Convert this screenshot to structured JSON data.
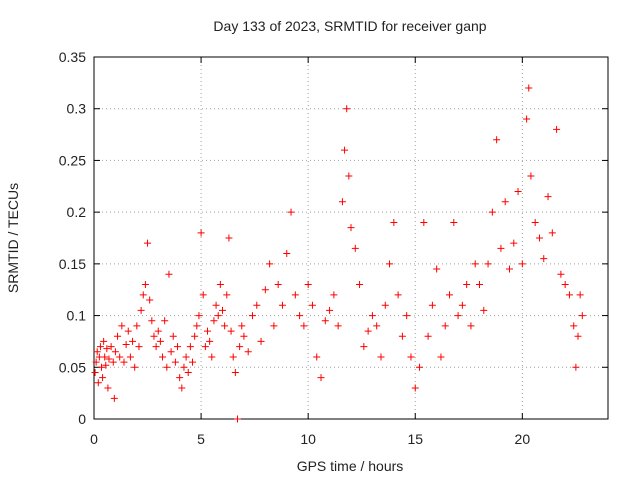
{
  "chart_data": {
    "type": "scatter",
    "title": "Day 133 of 2023, SRMTID for receiver ganp",
    "xlabel": "GPS time / hours",
    "ylabel": "SRMTID / TECUs",
    "xlim": [
      0,
      24
    ],
    "ylim": [
      0,
      0.35
    ],
    "xticks": [
      0,
      5,
      10,
      15,
      20
    ],
    "xtick_labels": [
      "0",
      "5",
      "10",
      "15",
      "20"
    ],
    "yticks": [
      0,
      0.05,
      0.1,
      0.15,
      0.2,
      0.25,
      0.3,
      0.35
    ],
    "ytick_labels": [
      "0",
      "0.05",
      "0.1",
      "0.15",
      "0.2",
      "0.25",
      "0.3",
      "0.35"
    ],
    "grid": true,
    "marker": "+",
    "color": "#ff0000",
    "series": [
      {
        "name": "SRMTID",
        "points": [
          [
            0.05,
            0.045
          ],
          [
            0.1,
            0.055
          ],
          [
            0.15,
            0.065
          ],
          [
            0.2,
            0.035
          ],
          [
            0.25,
            0.06
          ],
          [
            0.3,
            0.07
          ],
          [
            0.35,
            0.05
          ],
          [
            0.4,
            0.04
          ],
          [
            0.45,
            0.075
          ],
          [
            0.5,
            0.06
          ],
          [
            0.55,
            0.052
          ],
          [
            0.6,
            0.068
          ],
          [
            0.65,
            0.03
          ],
          [
            0.7,
            0.058
          ],
          [
            0.8,
            0.07
          ],
          [
            0.9,
            0.055
          ],
          [
            0.95,
            0.02
          ],
          [
            1.0,
            0.065
          ],
          [
            1.1,
            0.08
          ],
          [
            1.2,
            0.06
          ],
          [
            1.3,
            0.09
          ],
          [
            1.4,
            0.055
          ],
          [
            1.5,
            0.072
          ],
          [
            1.6,
            0.085
          ],
          [
            1.7,
            0.06
          ],
          [
            1.8,
            0.075
          ],
          [
            1.9,
            0.05
          ],
          [
            2.0,
            0.09
          ],
          [
            2.1,
            0.07
          ],
          [
            2.2,
            0.105
          ],
          [
            2.3,
            0.12
          ],
          [
            2.4,
            0.13
          ],
          [
            2.5,
            0.17
          ],
          [
            2.6,
            0.115
          ],
          [
            2.7,
            0.095
          ],
          [
            2.8,
            0.08
          ],
          [
            2.9,
            0.07
          ],
          [
            3.0,
            0.085
          ],
          [
            3.1,
            0.075
          ],
          [
            3.2,
            0.06
          ],
          [
            3.3,
            0.095
          ],
          [
            3.4,
            0.05
          ],
          [
            3.5,
            0.14
          ],
          [
            3.6,
            0.065
          ],
          [
            3.7,
            0.08
          ],
          [
            3.8,
            0.055
          ],
          [
            3.9,
            0.07
          ],
          [
            4.0,
            0.04
          ],
          [
            4.1,
            0.03
          ],
          [
            4.2,
            0.05
          ],
          [
            4.3,
            0.06
          ],
          [
            4.4,
            0.045
          ],
          [
            4.5,
            0.07
          ],
          [
            4.6,
            0.055
          ],
          [
            4.7,
            0.08
          ],
          [
            4.8,
            0.09
          ],
          [
            4.9,
            0.1
          ],
          [
            5.0,
            0.18
          ],
          [
            5.1,
            0.12
          ],
          [
            5.2,
            0.07
          ],
          [
            5.3,
            0.085
          ],
          [
            5.4,
            0.075
          ],
          [
            5.5,
            0.06
          ],
          [
            5.6,
            0.095
          ],
          [
            5.7,
            0.11
          ],
          [
            5.8,
            0.1
          ],
          [
            5.9,
            0.13
          ],
          [
            6.0,
            0.105
          ],
          [
            6.1,
            0.09
          ],
          [
            6.2,
            0.12
          ],
          [
            6.3,
            0.175
          ],
          [
            6.4,
            0.085
          ],
          [
            6.5,
            0.06
          ],
          [
            6.6,
            0.045
          ],
          [
            6.7,
            0.0
          ],
          [
            6.8,
            0.07
          ],
          [
            6.9,
            0.09
          ],
          [
            7.0,
            0.08
          ],
          [
            7.2,
            0.065
          ],
          [
            7.4,
            0.1
          ],
          [
            7.6,
            0.11
          ],
          [
            7.8,
            0.075
          ],
          [
            8.0,
            0.125
          ],
          [
            8.2,
            0.15
          ],
          [
            8.4,
            0.09
          ],
          [
            8.6,
            0.13
          ],
          [
            8.8,
            0.11
          ],
          [
            9.0,
            0.16
          ],
          [
            9.2,
            0.2
          ],
          [
            9.4,
            0.12
          ],
          [
            9.6,
            0.1
          ],
          [
            9.8,
            0.09
          ],
          [
            10.0,
            0.13
          ],
          [
            10.2,
            0.11
          ],
          [
            10.4,
            0.06
          ],
          [
            10.6,
            0.04
          ],
          [
            10.8,
            0.095
          ],
          [
            11.0,
            0.105
          ],
          [
            11.2,
            0.12
          ],
          [
            11.4,
            0.09
          ],
          [
            11.6,
            0.21
          ],
          [
            11.7,
            0.26
          ],
          [
            11.8,
            0.3
          ],
          [
            11.9,
            0.235
          ],
          [
            12.0,
            0.185
          ],
          [
            12.2,
            0.165
          ],
          [
            12.4,
            0.13
          ],
          [
            12.6,
            0.07
          ],
          [
            12.8,
            0.085
          ],
          [
            13.0,
            0.1
          ],
          [
            13.2,
            0.09
          ],
          [
            13.4,
            0.06
          ],
          [
            13.6,
            0.11
          ],
          [
            13.8,
            0.15
          ],
          [
            14.0,
            0.19
          ],
          [
            14.2,
            0.12
          ],
          [
            14.4,
            0.08
          ],
          [
            14.6,
            0.1
          ],
          [
            14.8,
            0.06
          ],
          [
            15.0,
            0.03
          ],
          [
            15.2,
            0.05
          ],
          [
            15.4,
            0.19
          ],
          [
            15.6,
            0.08
          ],
          [
            15.8,
            0.11
          ],
          [
            16.0,
            0.145
          ],
          [
            16.2,
            0.06
          ],
          [
            16.4,
            0.09
          ],
          [
            16.6,
            0.12
          ],
          [
            16.8,
            0.19
          ],
          [
            17.0,
            0.1
          ],
          [
            17.2,
            0.11
          ],
          [
            17.4,
            0.13
          ],
          [
            17.6,
            0.09
          ],
          [
            17.8,
            0.15
          ],
          [
            18.0,
            0.13
          ],
          [
            18.2,
            0.105
          ],
          [
            18.4,
            0.15
          ],
          [
            18.6,
            0.2
          ],
          [
            18.8,
            0.27
          ],
          [
            19.0,
            0.165
          ],
          [
            19.2,
            0.21
          ],
          [
            19.4,
            0.145
          ],
          [
            19.6,
            0.17
          ],
          [
            19.8,
            0.22
          ],
          [
            20.0,
            0.15
          ],
          [
            20.2,
            0.29
          ],
          [
            20.3,
            0.32
          ],
          [
            20.4,
            0.235
          ],
          [
            20.6,
            0.19
          ],
          [
            20.8,
            0.175
          ],
          [
            21.0,
            0.155
          ],
          [
            21.2,
            0.215
          ],
          [
            21.4,
            0.18
          ],
          [
            21.6,
            0.28
          ],
          [
            21.8,
            0.14
          ],
          [
            22.0,
            0.13
          ],
          [
            22.2,
            0.12
          ],
          [
            22.4,
            0.09
          ],
          [
            22.5,
            0.05
          ],
          [
            22.6,
            0.08
          ],
          [
            22.7,
            0.12
          ],
          [
            22.8,
            0.1
          ]
        ]
      }
    ]
  }
}
